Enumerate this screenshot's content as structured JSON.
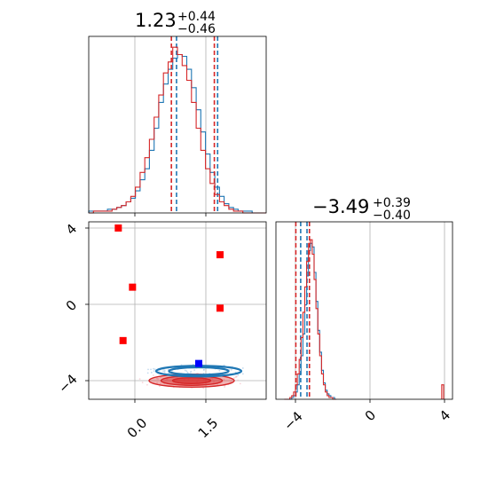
{
  "colors": {
    "posterior_a": "#1f77b4",
    "posterior_b": "#d62728",
    "truth_marker": "#0000ff",
    "sample_marker": "#ff0000",
    "grid": "#b0b0b0"
  },
  "chart_data": [
    {
      "type": "histogram",
      "panel": "marginal-param-1",
      "title": {
        "median": "1.23",
        "upper": "+0.44",
        "lower": "−0.46"
      },
      "xlim": [
        -1.0,
        2.8
      ],
      "xticks": [
        0.0,
        1.5
      ],
      "grid": true,
      "series": [
        {
          "color": "#1f77b4",
          "bin_start": -1.0,
          "bin_width": 0.1,
          "counts": [
            1,
            1,
            1,
            1,
            2,
            2,
            3,
            4,
            6,
            8,
            12,
            18,
            24,
            34,
            46,
            60,
            70,
            78,
            84,
            86,
            85,
            78,
            68,
            56,
            44,
            32,
            22,
            14,
            9,
            5,
            3,
            2,
            1,
            1,
            1,
            0,
            0,
            0
          ],
          "quantiles": [
            0.88,
            1.76
          ]
        },
        {
          "color": "#d62728",
          "bin_start": -1.0,
          "bin_width": 0.1,
          "counts": [
            0,
            1,
            1,
            1,
            1,
            2,
            3,
            4,
            6,
            9,
            14,
            22,
            30,
            40,
            52,
            64,
            76,
            82,
            90,
            86,
            80,
            72,
            60,
            46,
            34,
            24,
            16,
            10,
            6,
            4,
            2,
            1,
            1,
            0,
            0,
            0,
            0,
            0
          ],
          "quantiles": [
            0.77,
            1.69
          ]
        }
      ]
    },
    {
      "type": "histogram",
      "panel": "marginal-param-2",
      "title": {
        "median": "−3.49",
        "upper": "+0.39",
        "lower": "−0.40"
      },
      "xlim": [
        -5.0,
        4.4
      ],
      "xticks": [
        -4,
        0,
        4
      ],
      "xtick_labels": [
        "−4",
        "0",
        "4"
      ],
      "grid": true,
      "series": [
        {
          "color": "#1f77b4",
          "bin_start": -4.6,
          "bin_width": 0.1,
          "counts": [
            0,
            0,
            0,
            0,
            1,
            2,
            4,
            8,
            14,
            24,
            36,
            52,
            68,
            82,
            86,
            84,
            70,
            54,
            38,
            26,
            16,
            9,
            5,
            3,
            2,
            1,
            1,
            0
          ],
          "quantiles": [
            -3.72,
            -3.38
          ]
        },
        {
          "color": "#d62728",
          "bin_start": -4.6,
          "bin_width": 0.1,
          "counts": [
            0,
            0,
            0,
            1,
            2,
            4,
            8,
            14,
            22,
            34,
            48,
            62,
            76,
            86,
            88,
            80,
            66,
            50,
            36,
            24,
            14,
            8,
            4,
            2,
            1,
            1,
            0,
            0
          ],
          "quantiles": [
            -3.98,
            -3.25
          ]
        }
      ],
      "outlier_bin": {
        "x": 3.9,
        "count": 1
      }
    },
    {
      "type": "scatter-contour",
      "panel": "joint-param-1-param-2",
      "xlim": [
        -1.0,
        2.8
      ],
      "ylim": [
        -5.0,
        4.4
      ],
      "xticks": [
        0.0,
        1.5
      ],
      "yticks": [
        -4,
        0,
        4
      ],
      "ytick_labels": [
        "−4",
        "0",
        "4"
      ],
      "grid": true,
      "contours": [
        {
          "color": "#d62728",
          "center": [
            1.2,
            -4.0
          ],
          "spread": [
            0.9,
            0.34
          ],
          "levels": [
            1.0,
            0.72,
            0.45
          ],
          "filled": true
        },
        {
          "color": "#1f77b4",
          "center": [
            1.35,
            -3.5
          ],
          "spread": [
            0.9,
            0.28
          ],
          "levels": [
            1.0,
            0.7
          ],
          "filled": false
        }
      ],
      "red_points": [
        [
          -0.35,
          4.0
        ],
        [
          -0.05,
          0.9
        ],
        [
          -0.25,
          -1.9
        ],
        [
          1.8,
          2.6
        ],
        [
          1.8,
          -0.2
        ]
      ],
      "blue_points": [
        [
          1.35,
          -3.1
        ]
      ]
    }
  ]
}
